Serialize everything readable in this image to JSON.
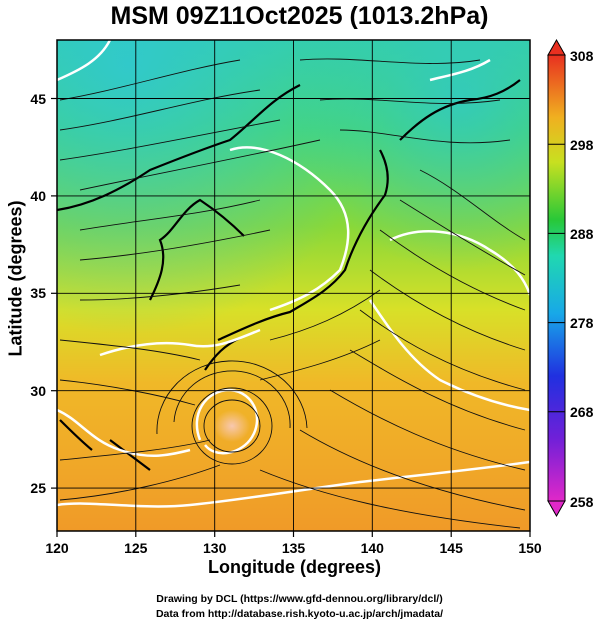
{
  "title": "MSM 09Z11Oct2025 (1013.2hPa)",
  "xlabel": "Longitude (degrees)",
  "ylabel": "Latitude  (degrees)",
  "credits": [
    "Drawing by DCL (https://www.gfd-dennou.org/library/dcl/)",
    "Data from http://database.rish.kyoto-u.ac.jp/arch/jmadata/"
  ],
  "map": {
    "lon_range": [
      120,
      150
    ],
    "lat_range": [
      22.4,
      47.6
    ],
    "x_ticks": [
      "120",
      "125",
      "130",
      "135",
      "140",
      "145",
      "150"
    ],
    "y_ticks": [
      "25",
      "30",
      "35",
      "40",
      "45"
    ],
    "typhoon_center": {
      "lon": 131.2,
      "lat": 28.5
    },
    "grid_lines": true
  },
  "colorbar": {
    "min": 258,
    "max": 308,
    "ticks": [
      "308",
      "298",
      "288",
      "278",
      "268",
      "258"
    ],
    "colors": [
      "#e028c8",
      "#2020e0",
      "#1fa3e0",
      "#20d8c8",
      "#20c040",
      "#d8e020",
      "#f0a020",
      "#e03020"
    ]
  }
}
